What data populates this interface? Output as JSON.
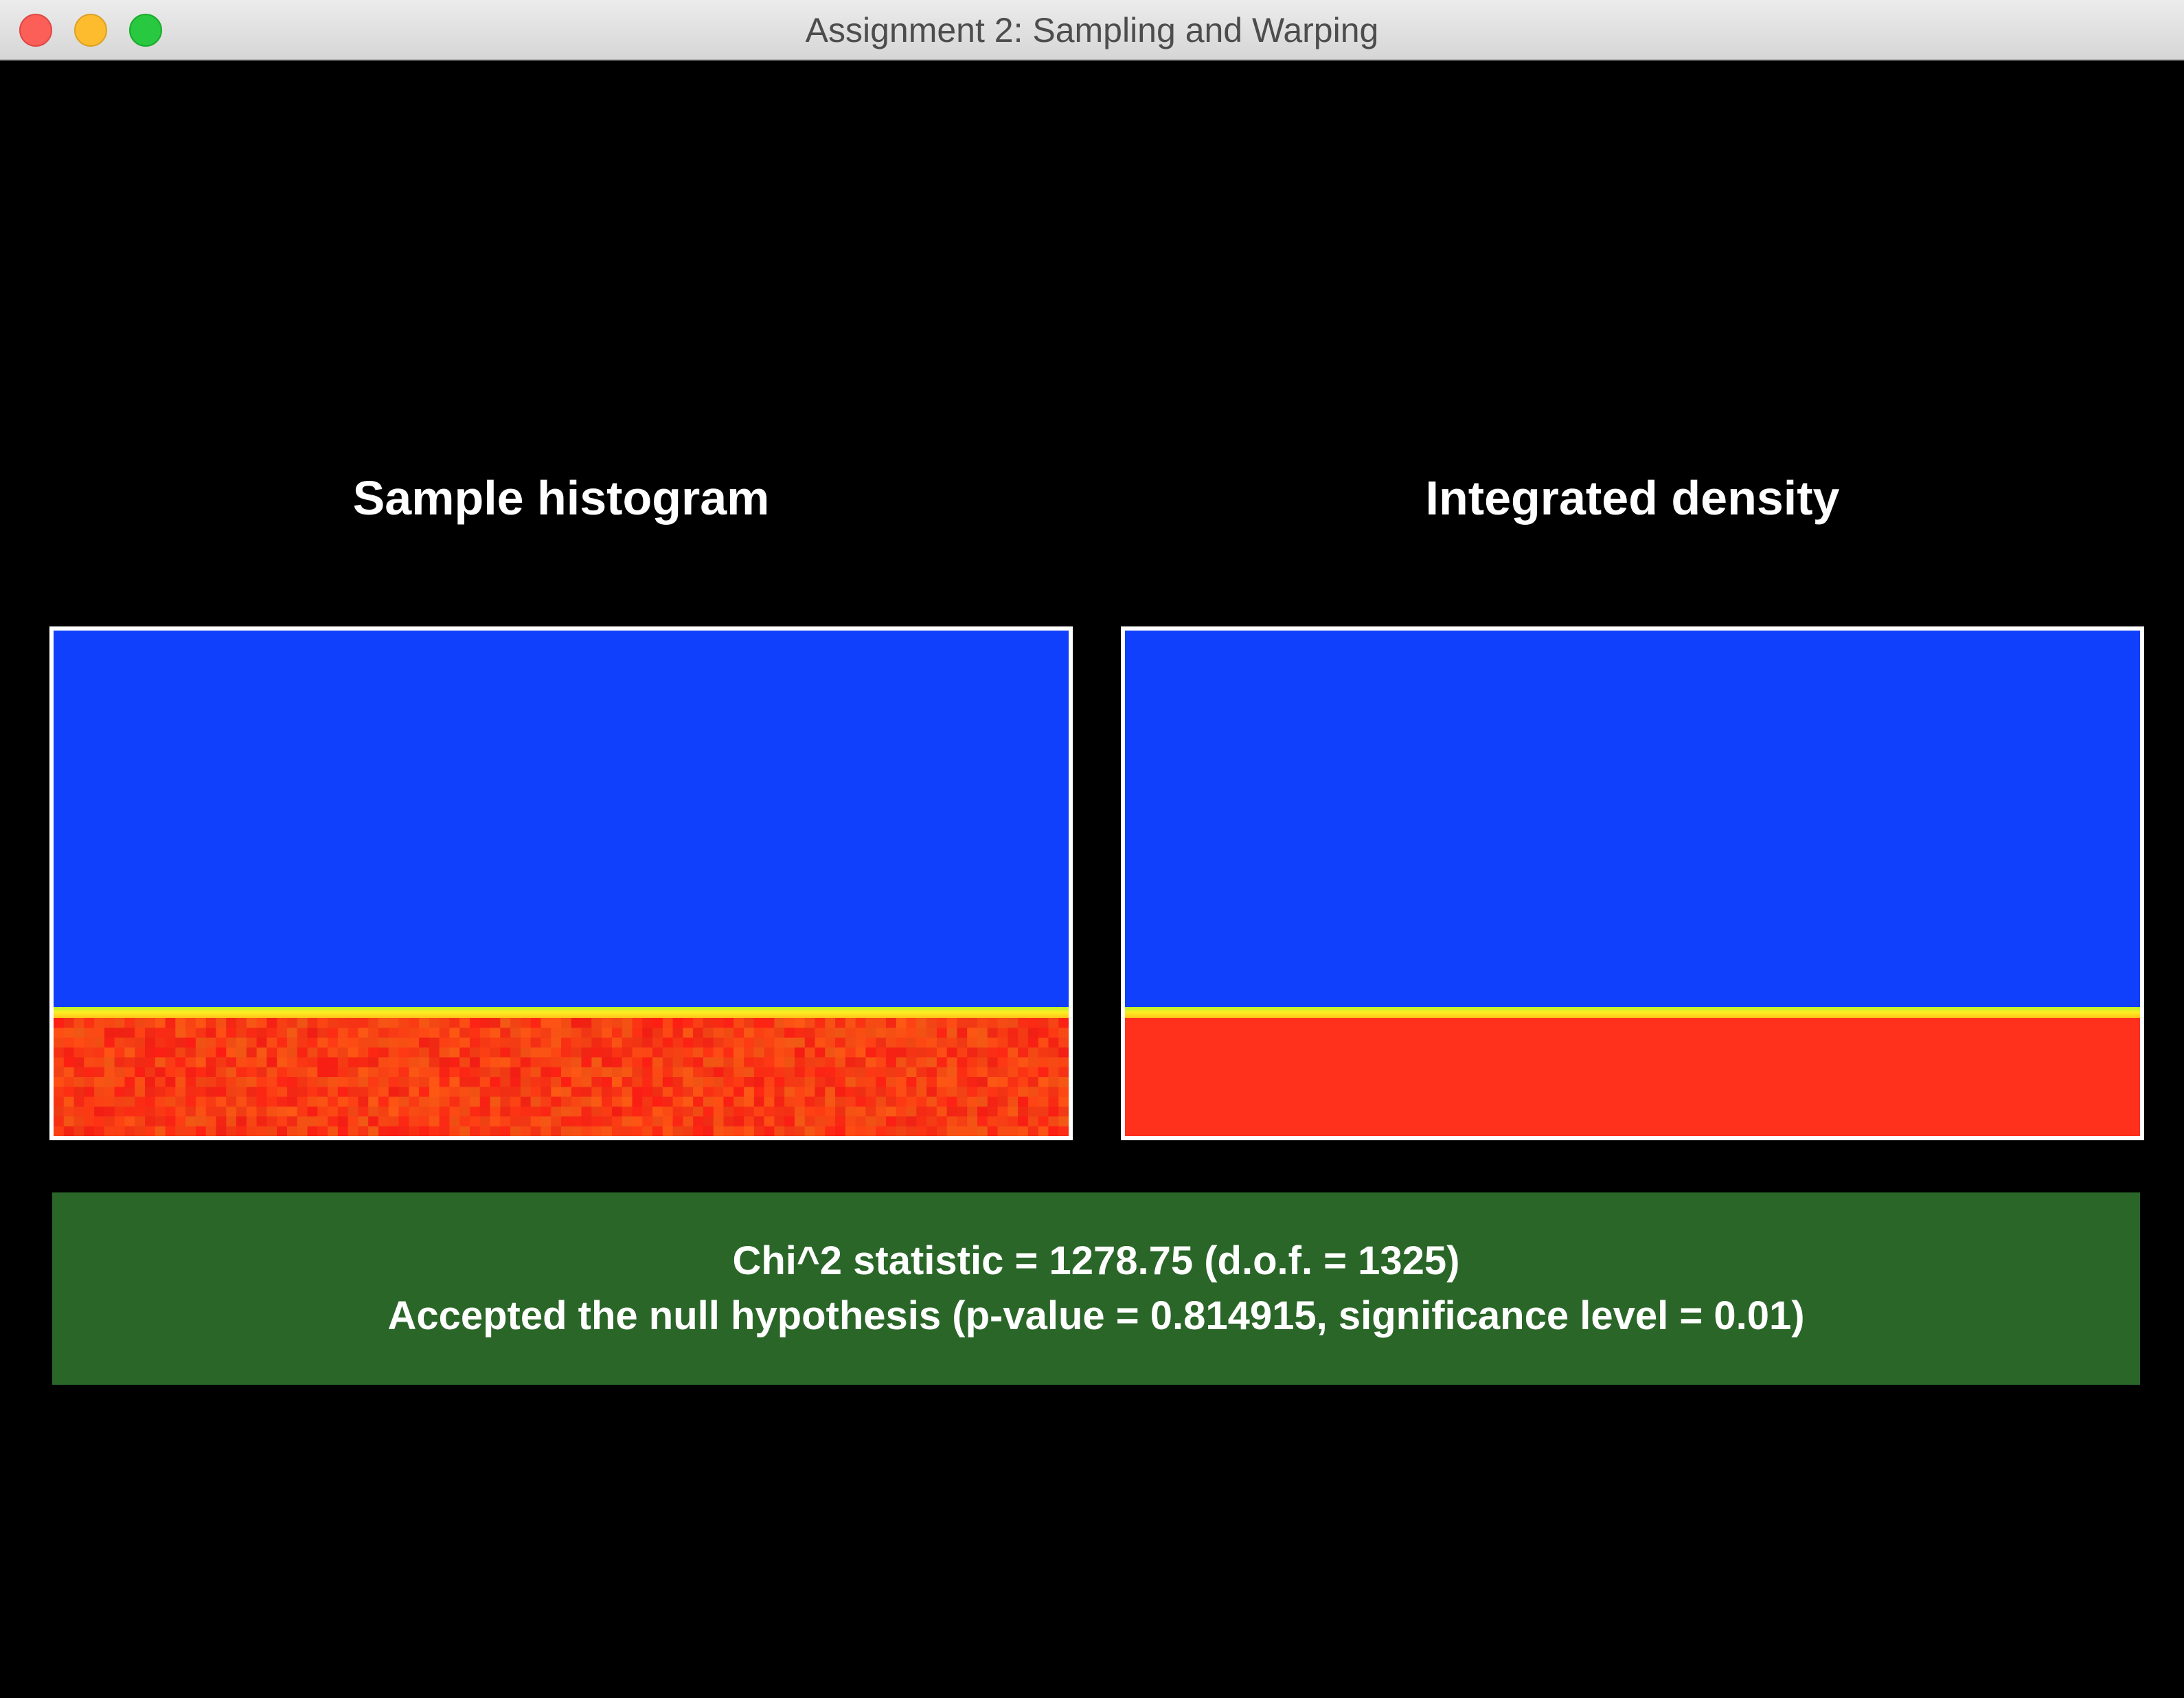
{
  "window": {
    "title": "Assignment 2: Sampling and Warping"
  },
  "panels": {
    "left": {
      "title": "Sample histogram",
      "colors": {
        "upper": "#1040fc",
        "divider": "#ffee22",
        "lower": "#ff301c"
      }
    },
    "right": {
      "title": "Integrated density",
      "colors": {
        "upper": "#1040fc",
        "divider": "#ffee22",
        "lower": "#ff301c"
      }
    }
  },
  "result": {
    "line1": "Chi^2 statistic = 1278.75 (d.o.f. = 1325)",
    "line2": "Accepted the null hypothesis (p-value = 0.814915, significance level = 0.01)",
    "background_color": "#2a6628"
  }
}
